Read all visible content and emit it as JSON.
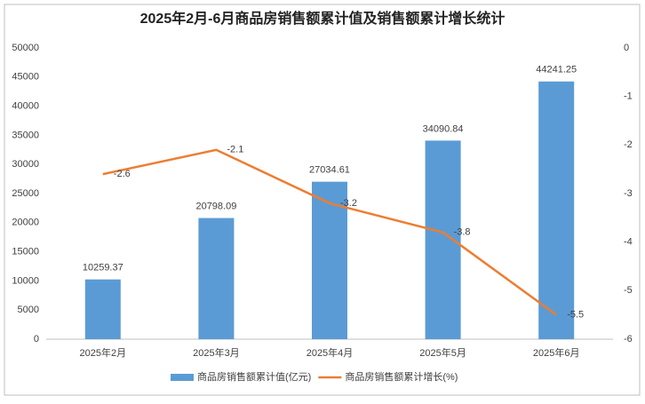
{
  "chart_data": {
    "type": "bar",
    "title": "2025年2月-6月商品房销售额累计值及销售额累计增长统计",
    "categories": [
      "2025年2月",
      "2025年3月",
      "2025年4月",
      "2025年5月",
      "2025年6月"
    ],
    "series": [
      {
        "name": "商品房销售额累计值(亿元)",
        "color": "#5b9bd5",
        "type": "bar",
        "values": [
          10259.37,
          20798.09,
          27034.61,
          34090.84,
          44241.25
        ]
      },
      {
        "name": "商品房销售额累计增长(%)",
        "color": "#ed7d31",
        "type": "line",
        "axis": "y2",
        "values": [
          -2.6,
          -2.1,
          -3.2,
          -3.8,
          -5.5
        ]
      }
    ],
    "ylim": [
      0,
      50000
    ],
    "yticks": [
      0,
      5000,
      10000,
      15000,
      20000,
      25000,
      30000,
      35000,
      40000,
      45000,
      50000
    ],
    "y2lim": [
      -6,
      0
    ],
    "y2ticks": [
      0,
      -1,
      -2,
      -3,
      -4,
      -5,
      -6
    ],
    "grid": false,
    "legend": "bottom"
  }
}
